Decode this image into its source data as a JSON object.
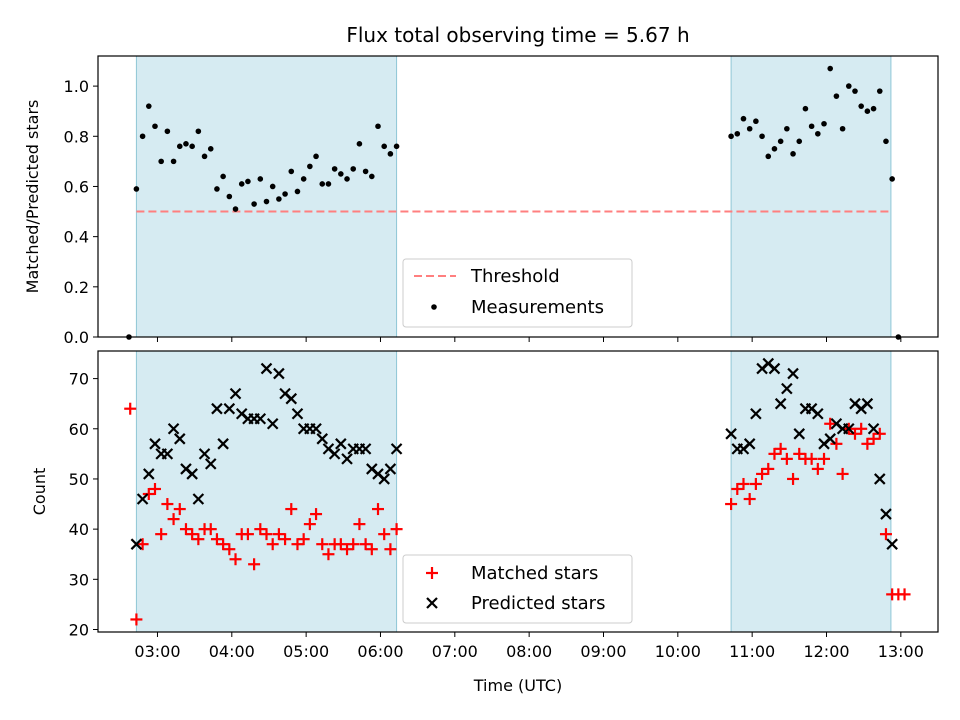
{
  "figure": {
    "title": "Flux total observing time = 5.67 h",
    "xlabel": "Time (UTC)"
  },
  "chart_data": [
    {
      "type": "scatter",
      "ylabel": "Matched/Predicted stars",
      "ylim": [
        0,
        1.12
      ],
      "xlim": [
        "02:12",
        "13:30"
      ],
      "yticks": [
        "0.0",
        "0.2",
        "0.4",
        "0.6",
        "0.8",
        "1.0"
      ],
      "yticks_values": [
        0,
        0.2,
        0.4,
        0.6,
        0.8,
        1.0
      ],
      "observing_windows": [
        [
          "02:43",
          "06:13"
        ],
        [
          "10:43",
          "12:52"
        ]
      ],
      "threshold": {
        "name": "Threshold",
        "value": 0.5,
        "color": "#ff7f7f",
        "x_range": [
          "02:43",
          "12:52"
        ]
      },
      "series": [
        {
          "name": "Measurements",
          "color": "#000000",
          "marker": "dot",
          "x": [
            "02:37",
            "02:43",
            "02:48",
            "02:53",
            "02:58",
            "03:03",
            "03:08",
            "03:13",
            "03:18",
            "03:23",
            "03:28",
            "03:33",
            "03:38",
            "03:43",
            "03:48",
            "03:53",
            "03:58",
            "04:03",
            "04:08",
            "04:13",
            "04:18",
            "04:23",
            "04:28",
            "04:33",
            "04:38",
            "04:43",
            "04:48",
            "04:53",
            "04:58",
            "05:03",
            "05:08",
            "05:13",
            "05:18",
            "05:23",
            "05:28",
            "05:33",
            "05:38",
            "05:43",
            "05:48",
            "05:53",
            "05:58",
            "06:03",
            "06:08",
            "06:13",
            "10:43",
            "10:48",
            "10:53",
            "10:58",
            "11:03",
            "11:08",
            "11:13",
            "11:18",
            "11:23",
            "11:28",
            "11:33",
            "11:38",
            "11:43",
            "11:48",
            "11:53",
            "11:58",
            "12:03",
            "12:08",
            "12:13",
            "12:18",
            "12:23",
            "12:28",
            "12:33",
            "12:38",
            "12:43",
            "12:48",
            "12:53",
            "12:58"
          ],
          "y": [
            0.0,
            0.59,
            0.8,
            0.92,
            0.84,
            0.7,
            0.82,
            0.7,
            0.76,
            0.77,
            0.76,
            0.82,
            0.72,
            0.75,
            0.59,
            0.64,
            0.56,
            0.51,
            0.61,
            0.62,
            0.53,
            0.63,
            0.54,
            0.6,
            0.55,
            0.57,
            0.66,
            0.58,
            0.63,
            0.68,
            0.72,
            0.61,
            0.61,
            0.67,
            0.65,
            0.63,
            0.67,
            0.77,
            0.66,
            0.64,
            0.84,
            0.76,
            0.73,
            0.76,
            0.8,
            0.81,
            0.87,
            0.83,
            0.86,
            0.8,
            0.72,
            0.75,
            0.78,
            0.83,
            0.73,
            0.78,
            0.91,
            0.84,
            0.81,
            0.85,
            1.07,
            0.96,
            0.83,
            1.0,
            0.98,
            0.92,
            0.9,
            0.91,
            0.98,
            0.78,
            0.63,
            0.0
          ]
        }
      ],
      "legend": {
        "placement": "bottom-center",
        "entries": [
          "Threshold",
          "Measurements"
        ]
      }
    },
    {
      "type": "scatter",
      "ylabel": "Count",
      "ylim": [
        19.5,
        75.5
      ],
      "xlim": [
        "02:12",
        "13:30"
      ],
      "yticks": [
        "20",
        "30",
        "40",
        "50",
        "60",
        "70"
      ],
      "yticks_values": [
        20,
        30,
        40,
        50,
        60,
        70
      ],
      "xticks": [
        "03:00",
        "04:00",
        "05:00",
        "06:00",
        "07:00",
        "08:00",
        "09:00",
        "10:00",
        "11:00",
        "12:00",
        "13:00"
      ],
      "observing_windows": [
        [
          "02:43",
          "06:13"
        ],
        [
          "10:43",
          "12:52"
        ]
      ],
      "series": [
        {
          "name": "Matched stars",
          "color": "#ff0000",
          "marker": "plus",
          "x": [
            "02:38",
            "02:43",
            "02:48",
            "02:53",
            "02:58",
            "03:03",
            "03:08",
            "03:13",
            "03:18",
            "03:23",
            "03:28",
            "03:33",
            "03:38",
            "03:43",
            "03:48",
            "03:53",
            "03:58",
            "04:03",
            "04:08",
            "04:13",
            "04:18",
            "04:23",
            "04:28",
            "04:33",
            "04:38",
            "04:43",
            "04:48",
            "04:53",
            "04:58",
            "05:03",
            "05:08",
            "05:13",
            "05:18",
            "05:23",
            "05:28",
            "05:33",
            "05:38",
            "05:43",
            "05:48",
            "05:53",
            "05:58",
            "06:03",
            "06:08",
            "06:13",
            "10:43",
            "10:48",
            "10:53",
            "10:58",
            "11:03",
            "11:08",
            "11:13",
            "11:18",
            "11:23",
            "11:28",
            "11:33",
            "11:38",
            "11:43",
            "11:48",
            "11:53",
            "11:58",
            "12:03",
            "12:08",
            "12:13",
            "12:18",
            "12:23",
            "12:28",
            "12:33",
            "12:38",
            "12:43",
            "12:48",
            "12:53",
            "12:58",
            "13:03"
          ],
          "y": [
            64,
            22,
            37,
            47,
            48,
            39,
            45,
            42,
            44,
            40,
            39,
            38,
            40,
            40,
            38,
            37,
            36,
            34,
            39,
            39,
            33,
            40,
            39,
            37,
            39,
            38,
            44,
            37,
            38,
            41,
            43,
            37,
            35,
            37,
            37,
            36,
            37,
            41,
            37,
            36,
            44,
            39,
            36,
            40,
            45,
            48,
            49,
            46,
            49,
            51,
            52,
            55,
            56,
            54,
            50,
            55,
            54,
            54,
            52,
            54,
            61,
            57,
            51,
            60,
            59,
            60,
            57,
            58,
            59,
            39,
            27,
            27,
            27
          ]
        },
        {
          "name": "Predicted stars",
          "color": "#000000",
          "marker": "cross",
          "x": [
            "02:43",
            "02:48",
            "02:53",
            "02:58",
            "03:03",
            "03:08",
            "03:13",
            "03:18",
            "03:23",
            "03:28",
            "03:33",
            "03:38",
            "03:43",
            "03:48",
            "03:53",
            "03:58",
            "04:03",
            "04:08",
            "04:13",
            "04:18",
            "04:23",
            "04:28",
            "04:33",
            "04:38",
            "04:43",
            "04:48",
            "04:53",
            "04:58",
            "05:03",
            "05:08",
            "05:13",
            "05:18",
            "05:23",
            "05:28",
            "05:33",
            "05:38",
            "05:43",
            "05:48",
            "05:53",
            "05:58",
            "06:03",
            "06:08",
            "06:13",
            "10:43",
            "10:48",
            "10:53",
            "10:58",
            "11:03",
            "11:08",
            "11:13",
            "11:18",
            "11:23",
            "11:28",
            "11:33",
            "11:38",
            "11:43",
            "11:48",
            "11:53",
            "11:58",
            "12:03",
            "12:08",
            "12:13",
            "12:18",
            "12:23",
            "12:28",
            "12:33",
            "12:38",
            "12:43",
            "12:48",
            "12:53"
          ],
          "y": [
            37,
            46,
            51,
            57,
            55,
            55,
            60,
            58,
            52,
            51,
            46,
            55,
            53,
            64,
            57,
            64,
            67,
            63,
            62,
            62,
            62,
            72,
            61,
            71,
            67,
            66,
            63,
            60,
            60,
            60,
            58,
            56,
            55,
            57,
            54,
            56,
            56,
            56,
            52,
            51,
            50,
            52,
            56,
            59,
            56,
            56,
            57,
            63,
            72,
            73,
            72,
            65,
            68,
            71,
            59,
            64,
            64,
            63,
            57,
            58,
            61,
            60,
            60,
            65,
            64,
            65,
            60,
            50,
            43,
            37
          ]
        }
      ],
      "legend": {
        "placement": "bottom-center",
        "entries": [
          "Matched stars",
          "Predicted stars"
        ]
      }
    }
  ]
}
